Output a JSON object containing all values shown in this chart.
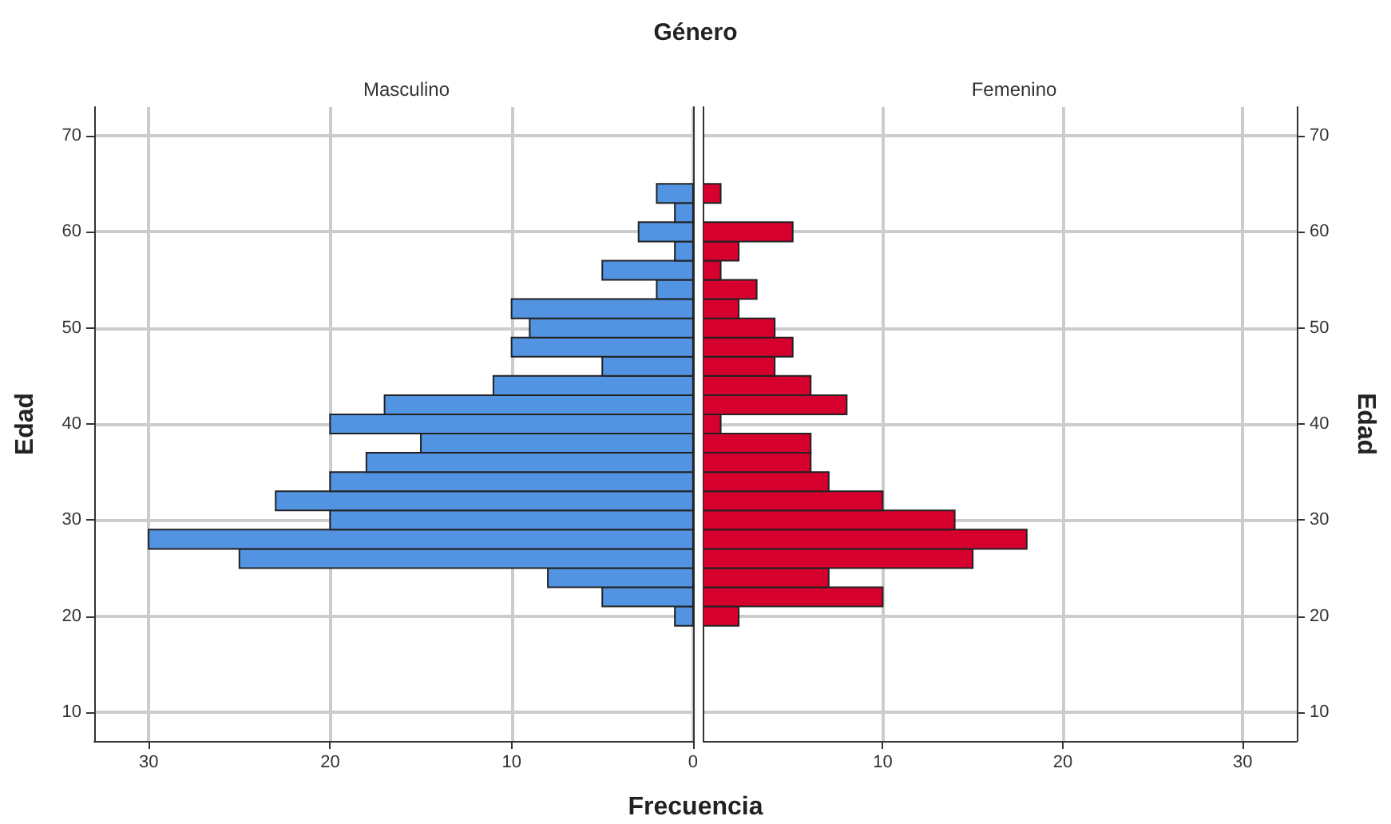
{
  "chart_data": [
    {
      "type": "histogram",
      "orientation": "horizontal",
      "title": "Género",
      "subtitle": "Masculino",
      "xlabel": "Frecuencia",
      "ylabel": "Edad",
      "bins": [
        19,
        21,
        23,
        25,
        27,
        29,
        31,
        33,
        35,
        37,
        39,
        41,
        43,
        45,
        47,
        49,
        51,
        53,
        55,
        57,
        59,
        61,
        63,
        65
      ],
      "values": [
        1,
        5,
        8,
        25,
        30,
        20,
        23,
        20,
        18,
        15,
        20,
        17,
        11,
        5,
        10,
        9,
        10,
        2,
        5,
        1,
        3,
        1,
        2
      ],
      "color": "#5294e2",
      "xlim": [
        33,
        0
      ],
      "xticks": [
        30,
        20,
        10,
        0
      ],
      "ylim": [
        7,
        73
      ],
      "yticks": [
        10,
        20,
        30,
        40,
        50,
        60,
        70
      ],
      "grid": true
    },
    {
      "type": "histogram",
      "orientation": "horizontal",
      "subtitle": "Femenino",
      "ylabel": "Edad",
      "bins": [
        19,
        21,
        23,
        25,
        27,
        29,
        31,
        33,
        35,
        37,
        39,
        41,
        43,
        45,
        47,
        49,
        51,
        53,
        55,
        57,
        59,
        61,
        63,
        65
      ],
      "values": [
        2,
        10,
        7,
        15,
        18,
        14,
        10,
        7,
        6,
        6,
        1,
        8,
        6,
        4,
        5,
        4,
        2,
        3,
        1,
        2,
        5,
        0,
        1
      ],
      "color": "#d6002f",
      "xlim": [
        0,
        33
      ],
      "xticks": [
        10,
        20,
        30
      ],
      "ylim": [
        7,
        73
      ],
      "yticks": [
        10,
        20,
        30,
        40,
        50,
        60,
        70
      ],
      "grid": true
    }
  ]
}
